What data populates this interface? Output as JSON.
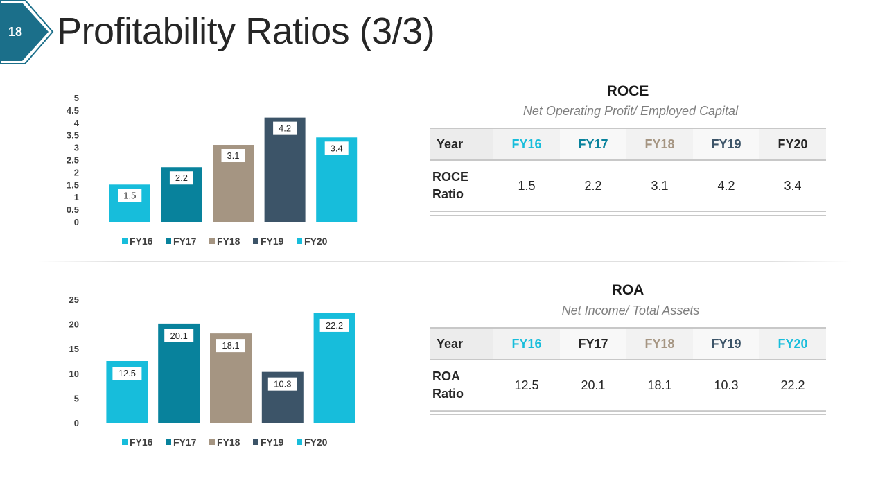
{
  "slide": {
    "number": "18",
    "title": "Profitability Ratios (3/3)",
    "badge_color": "#1b6f8a"
  },
  "colors": {
    "FY16": "#17bddb",
    "FY17": "#08829c",
    "FY18": "#a59582",
    "FY19": "#3c5468",
    "FY20": "#17bddb"
  },
  "roce": {
    "heading": "ROCE",
    "subtitle": "Net Operating Profit/ Employed Capital",
    "table": {
      "corner": "Year",
      "columns": [
        {
          "label": "FY16",
          "color": "#17bddb"
        },
        {
          "label": "FY17",
          "color": "#08829c"
        },
        {
          "label": "FY18",
          "color": "#a59582"
        },
        {
          "label": "FY19",
          "color": "#3c5468"
        },
        {
          "label": "FY20",
          "color": "#262626"
        }
      ],
      "row_label_line1": "ROCE",
      "row_label_line2": "Ratio",
      "values": [
        "1.5",
        "2.2",
        "3.1",
        "4.2",
        "3.4"
      ]
    }
  },
  "roa": {
    "heading": "ROA",
    "subtitle": "Net Income/ Total Assets",
    "table": {
      "corner": "Year",
      "columns": [
        {
          "label": "FY16",
          "color": "#17bddb"
        },
        {
          "label": "FY17",
          "color": "#262626"
        },
        {
          "label": "FY18",
          "color": "#a59582"
        },
        {
          "label": "FY19",
          "color": "#3c5468"
        },
        {
          "label": "FY20",
          "color": "#17bddb"
        }
      ],
      "row_label_line1": "ROA",
      "row_label_line2": "Ratio",
      "values": [
        "12.5",
        "20.1",
        "18.1",
        "10.3",
        "22.2"
      ]
    }
  },
  "chart_data": [
    {
      "type": "bar",
      "categories": [
        "FY16",
        "FY17",
        "FY18",
        "FY19",
        "FY20"
      ],
      "values": [
        1.5,
        2.2,
        3.1,
        4.2,
        3.4
      ],
      "data_labels": [
        "1.5",
        "2.2",
        "3.1",
        "4.2",
        "3.4"
      ],
      "yticks": [
        "0",
        "0.5",
        "1",
        "1.5",
        "2",
        "2.5",
        "3",
        "3.5",
        "4",
        "4.5",
        "5"
      ],
      "ylim": [
        0,
        5
      ],
      "grid": false,
      "legend": "bottom",
      "legend_entries": [
        "FY16",
        "FY17",
        "FY18",
        "FY19",
        "FY20"
      ],
      "bar_colors": [
        "#17bddb",
        "#08829c",
        "#a59582",
        "#3c5468",
        "#17bddb"
      ]
    },
    {
      "type": "bar",
      "categories": [
        "FY16",
        "FY17",
        "FY18",
        "FY19",
        "FY20"
      ],
      "values": [
        12.5,
        20.1,
        18.1,
        10.3,
        22.2
      ],
      "data_labels": [
        "12.5",
        "20.1",
        "18.1",
        "10.3",
        "22.2"
      ],
      "yticks": [
        "0",
        "5",
        "10",
        "15",
        "20",
        "25"
      ],
      "ylim": [
        0,
        25
      ],
      "grid": false,
      "legend": "bottom",
      "legend_entries": [
        "FY16",
        "FY17",
        "FY18",
        "FY19",
        "FY20"
      ],
      "bar_colors": [
        "#17bddb",
        "#08829c",
        "#a59582",
        "#3c5468",
        "#17bddb"
      ]
    }
  ]
}
